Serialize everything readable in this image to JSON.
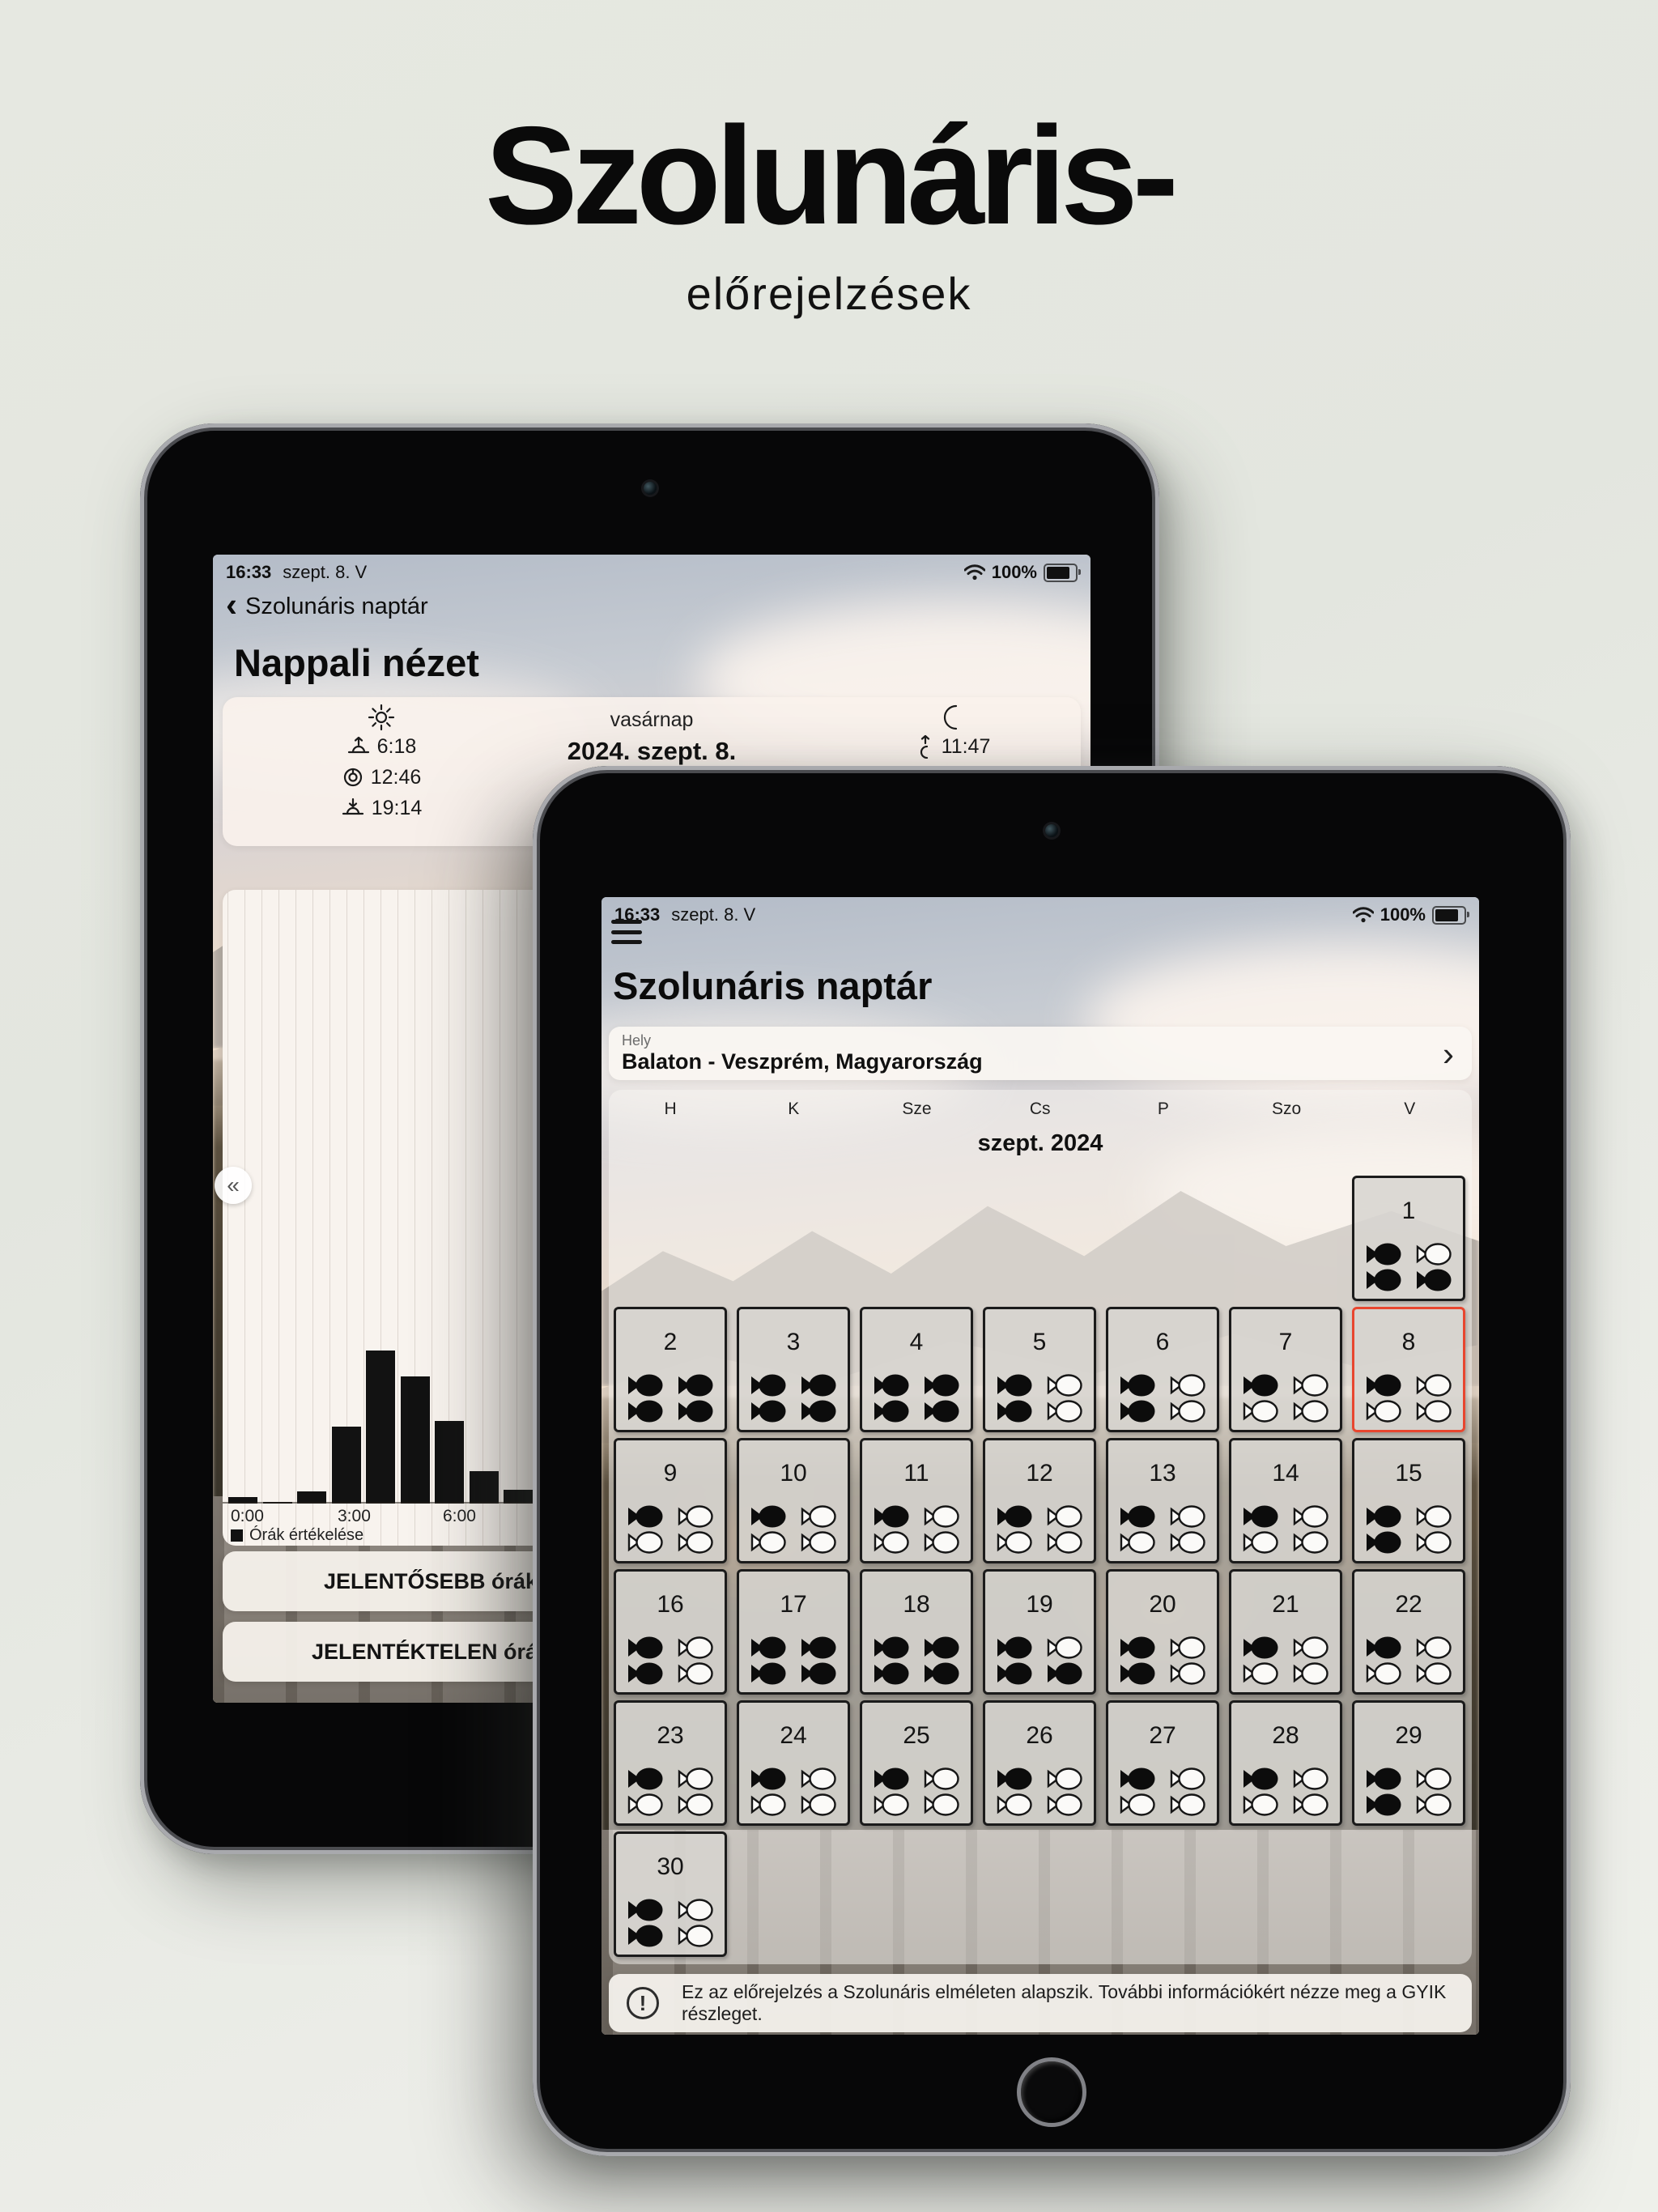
{
  "hero": {
    "title": "Szolunáris-",
    "subtitle": "előrejelzések"
  },
  "status_bar": {
    "time": "16:33",
    "date": "szept. 8. V",
    "battery": "100%",
    "wifi_icon": "wifi",
    "battery_icon": "battery-full"
  },
  "day_view": {
    "back_label": "Szolunáris naptár",
    "back_chevron": "‹",
    "title": "Nappali nézet",
    "sun": {
      "icon": "sun-icon",
      "rise": "6:18",
      "noon": "12:46",
      "set": "19:14"
    },
    "date_block": {
      "weekday": "vasárnap",
      "date": "2024. szept. 8."
    },
    "moon": {
      "icon": "crescent-moon-icon",
      "rise": "11:47"
    },
    "collapse_icon": "«",
    "buttons": [
      {
        "label": "JELENTŐSEBB órák"
      },
      {
        "label": "JELENTÉKTELEN órák"
      }
    ]
  },
  "chart_data": {
    "type": "bar",
    "title": "Órák értékelése",
    "x": [
      "0:00",
      "1:00",
      "2:00",
      "3:00",
      "4:00",
      "5:00",
      "6:00",
      "7:00",
      "8:00"
    ],
    "values": [
      0.04,
      0.01,
      0.08,
      0.5,
      1.0,
      0.83,
      0.54,
      0.21,
      0.09
    ],
    "ylim": [
      0,
      1
    ],
    "xlabel": "",
    "ylabel": "",
    "visible_xticks": [
      "0:00",
      "3:00",
      "6:00"
    ],
    "legend": [
      "Órák értékelése"
    ],
    "legend_position": "bottom-left",
    "grid": "vertical",
    "bar_color": "#121212"
  },
  "calendar": {
    "title": "Szolunáris naptár",
    "location_label": "Hely",
    "location": "Balaton - Veszprém, Magyarország",
    "location_chevron": "›",
    "weekdays": [
      "H",
      "K",
      "Sze",
      "Cs",
      "P",
      "Szo",
      "V"
    ],
    "month": "szept. 2024",
    "selected_day": 8,
    "days": [
      {
        "day": 1,
        "fish": [
          1,
          0,
          1,
          1
        ]
      },
      {
        "day": 2,
        "fish": [
          1,
          1,
          1,
          1
        ]
      },
      {
        "day": 3,
        "fish": [
          1,
          1,
          1,
          1
        ]
      },
      {
        "day": 4,
        "fish": [
          1,
          1,
          1,
          1
        ]
      },
      {
        "day": 5,
        "fish": [
          1,
          0,
          1,
          0
        ]
      },
      {
        "day": 6,
        "fish": [
          1,
          0,
          1,
          0
        ]
      },
      {
        "day": 7,
        "fish": [
          1,
          0,
          0,
          0
        ]
      },
      {
        "day": 8,
        "fish": [
          1,
          0,
          0,
          0
        ]
      },
      {
        "day": 9,
        "fish": [
          1,
          0,
          0,
          0
        ]
      },
      {
        "day": 10,
        "fish": [
          1,
          0,
          0,
          0
        ]
      },
      {
        "day": 11,
        "fish": [
          1,
          0,
          0,
          0
        ]
      },
      {
        "day": 12,
        "fish": [
          1,
          0,
          0,
          0
        ]
      },
      {
        "day": 13,
        "fish": [
          1,
          0,
          0,
          0
        ]
      },
      {
        "day": 14,
        "fish": [
          1,
          0,
          0,
          0
        ]
      },
      {
        "day": 15,
        "fish": [
          1,
          0,
          1,
          0
        ]
      },
      {
        "day": 16,
        "fish": [
          1,
          0,
          1,
          0
        ]
      },
      {
        "day": 17,
        "fish": [
          1,
          1,
          1,
          1
        ]
      },
      {
        "day": 18,
        "fish": [
          1,
          1,
          1,
          1
        ]
      },
      {
        "day": 19,
        "fish": [
          1,
          0,
          1,
          1
        ]
      },
      {
        "day": 20,
        "fish": [
          1,
          0,
          1,
          0
        ]
      },
      {
        "day": 21,
        "fish": [
          1,
          0,
          0,
          0
        ]
      },
      {
        "day": 22,
        "fish": [
          1,
          0,
          0,
          0
        ]
      },
      {
        "day": 23,
        "fish": [
          1,
          0,
          0,
          0
        ]
      },
      {
        "day": 24,
        "fish": [
          1,
          0,
          0,
          0
        ]
      },
      {
        "day": 25,
        "fish": [
          1,
          0,
          0,
          0
        ]
      },
      {
        "day": 26,
        "fish": [
          1,
          0,
          0,
          0
        ]
      },
      {
        "day": 27,
        "fish": [
          1,
          0,
          0,
          0
        ]
      },
      {
        "day": 28,
        "fish": [
          1,
          0,
          0,
          0
        ]
      },
      {
        "day": 29,
        "fish": [
          1,
          0,
          1,
          0
        ]
      },
      {
        "day": 30,
        "fish": [
          1,
          0,
          1,
          0
        ]
      }
    ],
    "footer": "Ez az előrejelzés a Szolunáris elméleten alapszik. További információkért nézze meg a GYIK részleget."
  },
  "colors": {
    "page_bg": "#e5e8e1",
    "selected_day_border": "#e8462f",
    "cell_border": "#1b1b1b",
    "bar_color": "#121212",
    "card_bg": "#faf2ec"
  }
}
